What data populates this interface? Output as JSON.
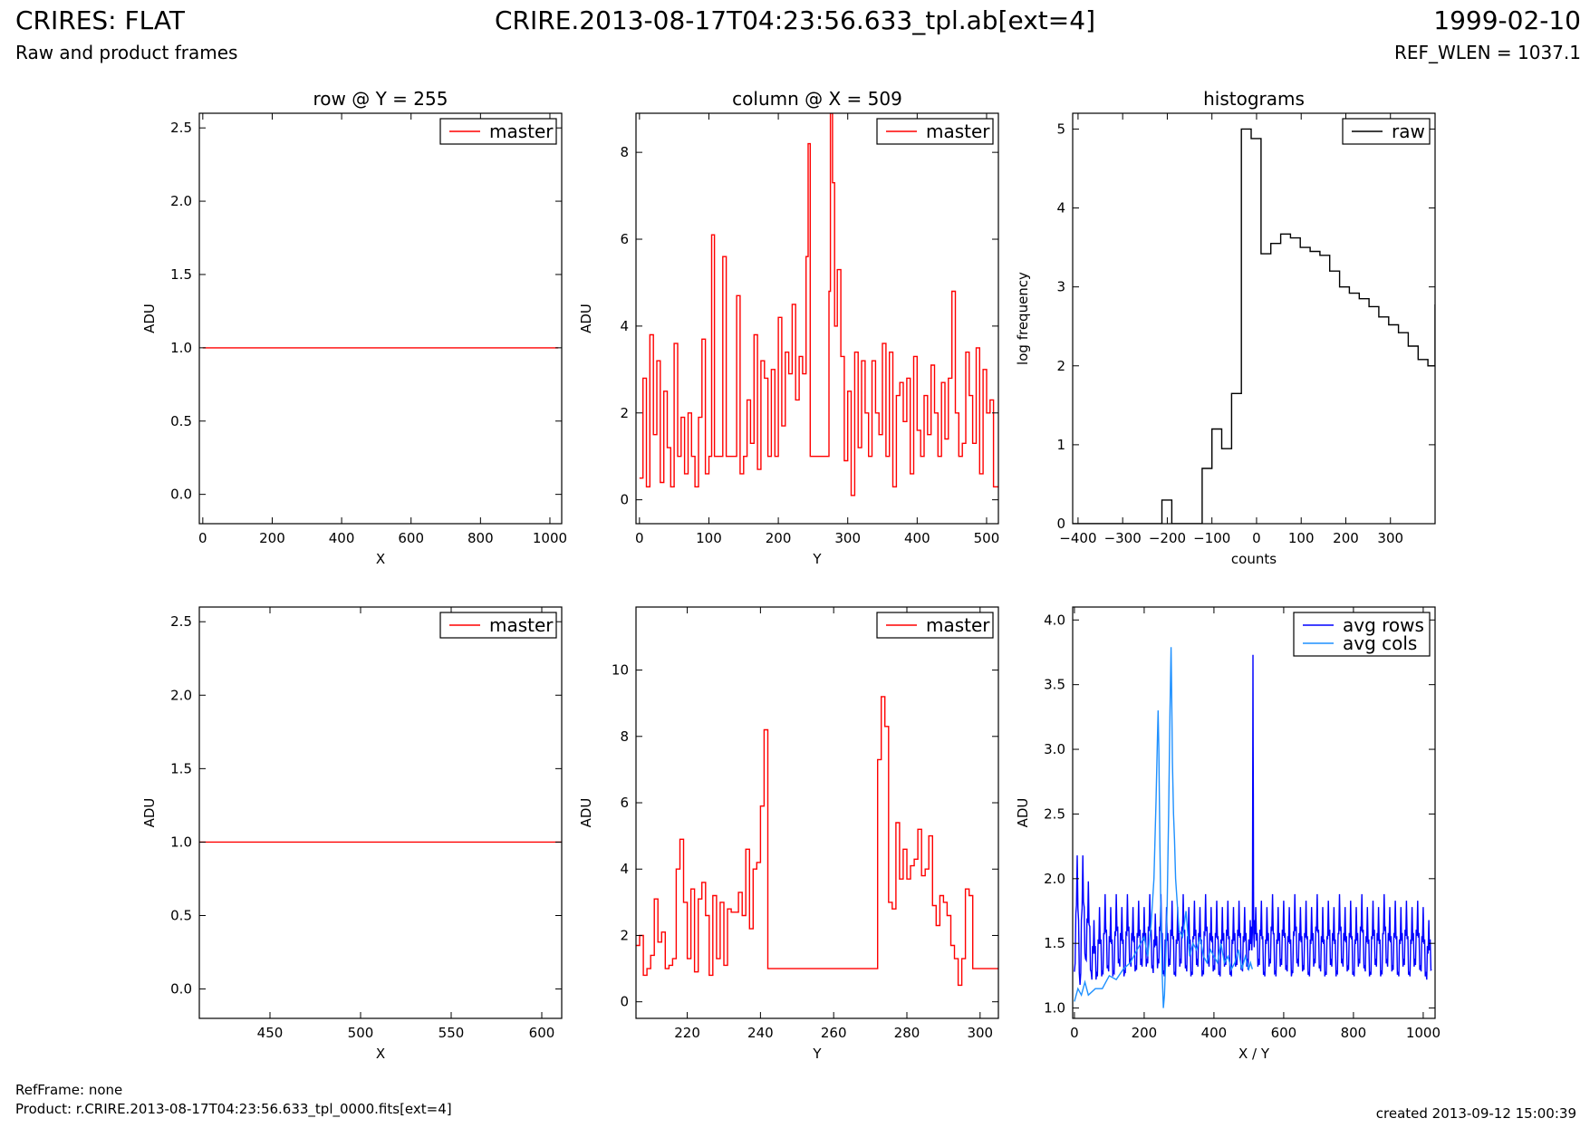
{
  "header": {
    "title": "CRIRES: FLAT",
    "subtitle": "Raw and product frames",
    "file": "CRIRE.2013-08-17T04:23:56.633_tpl.ab[ext=4]",
    "date": "1999-02-10",
    "ref_wlen": "REF_WLEN = 1037.1"
  },
  "footer": {
    "refframe": "RefFrame: none",
    "product": "Product: r.CRIRE.2013-08-17T04:23:56.633_tpl_0000.fits[ext=4]",
    "created": "created 2013-09-12 15:00:39"
  },
  "colors": {
    "master": "#ff0000",
    "raw": "#000000",
    "avg_rows": "#0000ff",
    "avg_cols": "#1e90ff"
  },
  "chart_data": [
    {
      "type": "line",
      "title": "row @ Y = 255",
      "xlabel": "X",
      "ylabel": "ADU",
      "xlim": [
        -10,
        1034
      ],
      "ylim": [
        -0.2,
        2.6
      ],
      "xticks": [
        0,
        200,
        400,
        600,
        800,
        1000
      ],
      "yticks": [
        0.0,
        0.5,
        1.0,
        1.5,
        2.0,
        2.5
      ],
      "ytick_decimals": 1,
      "legend": "top-right",
      "series": [
        {
          "name": "master",
          "color": "#ff0000",
          "step": false,
          "x": [
            0,
            1024
          ],
          "y": [
            1.0,
            1.0
          ]
        }
      ]
    },
    {
      "type": "line",
      "title": "column @ X = 509",
      "xlabel": "Y",
      "ylabel": "ADU",
      "xlim": [
        -5,
        517
      ],
      "ylim": [
        -0.55,
        8.9
      ],
      "xticks": [
        0,
        100,
        200,
        300,
        400,
        500
      ],
      "yticks": [
        0,
        2,
        4,
        6,
        8
      ],
      "ytick_decimals": 0,
      "legend": "top-right",
      "series": [
        {
          "name": "master",
          "color": "#ff0000",
          "step": true,
          "x": [
            0,
            5,
            10,
            15,
            20,
            25,
            30,
            35,
            40,
            45,
            50,
            55,
            60,
            65,
            70,
            75,
            80,
            85,
            90,
            95,
            100,
            104,
            108,
            112,
            116,
            120,
            125,
            130,
            135,
            140,
            145,
            150,
            155,
            160,
            165,
            170,
            175,
            180,
            185,
            190,
            195,
            200,
            205,
            210,
            215,
            220,
            225,
            230,
            235,
            240,
            243,
            246,
            250,
            255,
            260,
            265,
            270,
            273,
            275,
            278,
            281,
            285,
            290,
            295,
            300,
            305,
            310,
            315,
            320,
            325,
            330,
            335,
            340,
            345,
            350,
            355,
            360,
            365,
            370,
            375,
            380,
            385,
            390,
            395,
            400,
            405,
            410,
            415,
            420,
            425,
            430,
            435,
            440,
            445,
            450,
            455,
            460,
            465,
            470,
            475,
            480,
            485,
            490,
            495,
            500,
            505,
            510
          ],
          "y": [
            0.5,
            2.8,
            0.3,
            3.8,
            1.5,
            3.2,
            0.4,
            2.5,
            1.2,
            0.3,
            3.6,
            1.0,
            1.9,
            0.6,
            2.0,
            1.0,
            0.3,
            1.9,
            3.7,
            0.6,
            1.0,
            6.1,
            1.0,
            1.0,
            1.0,
            5.6,
            1.0,
            1.0,
            1.0,
            4.7,
            0.6,
            1.0,
            2.3,
            1.3,
            3.8,
            0.7,
            3.2,
            2.8,
            1.0,
            3.0,
            1.0,
            4.2,
            1.7,
            3.4,
            2.9,
            4.5,
            2.3,
            3.3,
            2.9,
            5.6,
            8.2,
            1.0,
            1.0,
            1.0,
            1.0,
            1.0,
            1.0,
            4.8,
            8.9,
            7.3,
            4.0,
            5.3,
            3.3,
            0.9,
            2.5,
            0.1,
            3.4,
            1.2,
            3.2,
            2.0,
            1.0,
            3.2,
            2.0,
            1.5,
            3.6,
            1.0,
            3.4,
            0.3,
            2.4,
            2.7,
            1.8,
            2.8,
            0.6,
            3.3,
            1.6,
            1.0,
            2.4,
            1.5,
            3.1,
            2.0,
            1.0,
            2.7,
            1.4,
            2.8,
            4.8,
            2.0,
            1.0,
            1.3,
            3.4,
            2.4,
            1.3,
            3.5,
            0.6,
            3.0,
            2.0,
            2.3,
            0.3
          ]
        }
      ]
    },
    {
      "type": "line",
      "title": "histograms",
      "xlabel": "counts",
      "ylabel": "log frequency",
      "xlim": [
        -412,
        400
      ],
      "ylim": [
        0,
        5.2
      ],
      "xticks": [
        -400,
        -300,
        -200,
        -100,
        0,
        100,
        200,
        300
      ],
      "yticks": [
        0,
        1,
        2,
        3,
        4,
        5
      ],
      "ytick_decimals": 0,
      "legend": "top-right",
      "series": [
        {
          "name": "raw",
          "color": "#000000",
          "step": true,
          "x": [
            -412,
            -212,
            -190,
            -168,
            -122,
            -100,
            -78,
            -56,
            -34,
            -12,
            10,
            32,
            54,
            76,
            98,
            120,
            142,
            164,
            186,
            208,
            230,
            252,
            274,
            296,
            318,
            340,
            362,
            384,
            400
          ],
          "y": [
            0,
            0.3,
            0,
            0,
            0.7,
            1.2,
            0.95,
            1.65,
            5.0,
            4.88,
            3.42,
            3.55,
            3.67,
            3.62,
            3.5,
            3.45,
            3.4,
            3.2,
            3.0,
            2.92,
            2.85,
            2.75,
            2.62,
            2.52,
            2.42,
            2.25,
            2.08,
            2.0,
            2.77
          ]
        }
      ]
    },
    {
      "type": "line",
      "title": "",
      "xlabel": "X",
      "ylabel": "ADU",
      "xlim": [
        411,
        611
      ],
      "ylim": [
        -0.2,
        2.6
      ],
      "xticks": [
        450,
        500,
        550,
        600
      ],
      "yticks": [
        0.0,
        0.5,
        1.0,
        1.5,
        2.0,
        2.5
      ],
      "ytick_decimals": 1,
      "legend": "top-right",
      "series": [
        {
          "name": "master",
          "color": "#ff0000",
          "step": false,
          "x": [
            411,
            611
          ],
          "y": [
            1.0,
            1.0
          ]
        }
      ]
    },
    {
      "type": "line",
      "title": "",
      "xlabel": "Y",
      "ylabel": "ADU",
      "xlim": [
        206,
        305
      ],
      "ylim": [
        -0.5,
        11.9
      ],
      "xticks": [
        220,
        240,
        260,
        280,
        300
      ],
      "yticks": [
        0,
        2,
        4,
        6,
        8,
        10
      ],
      "ytick_decimals": 0,
      "legend": "top-right",
      "series": [
        {
          "name": "master",
          "color": "#ff0000",
          "step": true,
          "x": [
            206,
            207,
            208,
            209,
            210,
            211,
            212,
            213,
            214,
            215,
            216,
            217,
            218,
            219,
            220,
            221,
            222,
            223,
            224,
            225,
            226,
            227,
            228,
            229,
            230,
            231,
            232,
            233,
            234,
            235,
            236,
            237,
            238,
            239,
            240,
            241,
            242,
            243,
            244,
            272,
            273,
            274,
            275,
            276,
            277,
            278,
            279,
            280,
            281,
            282,
            283,
            284,
            285,
            286,
            287,
            288,
            289,
            290,
            291,
            292,
            293,
            294,
            295,
            296,
            297,
            298,
            299,
            305
          ],
          "y": [
            1.7,
            2.0,
            0.8,
            1.0,
            1.4,
            3.1,
            1.8,
            2.1,
            1.0,
            1.1,
            1.3,
            4.0,
            4.9,
            3.0,
            1.3,
            3.4,
            0.9,
            3.1,
            3.6,
            2.6,
            0.8,
            3.2,
            1.3,
            3.0,
            1.1,
            2.8,
            2.7,
            2.7,
            3.3,
            2.6,
            4.6,
            2.2,
            4.0,
            4.2,
            5.9,
            8.2,
            1.0,
            1.0,
            1.0,
            7.3,
            9.2,
            8.3,
            3.0,
            2.8,
            5.4,
            3.7,
            4.6,
            3.7,
            4.1,
            4.3,
            5.2,
            3.8,
            4.0,
            5.0,
            2.9,
            2.3,
            3.2,
            3.0,
            2.6,
            1.7,
            1.3,
            0.5,
            1.3,
            3.4,
            3.2,
            1.0,
            1.0,
            1.0
          ]
        }
      ]
    },
    {
      "type": "line",
      "title": "",
      "xlabel": "X / Y",
      "ylabel": "ADU",
      "xlim": [
        -5,
        1034
      ],
      "ylim": [
        0.92,
        4.1
      ],
      "xticks": [
        0,
        200,
        400,
        600,
        800,
        1000
      ],
      "yticks": [
        1.0,
        1.5,
        2.0,
        2.5,
        3.0,
        3.5,
        4.0
      ],
      "ytick_decimals": 1,
      "legend": "top-right",
      "series": [
        {
          "name": "avg rows",
          "color": "#0000ff",
          "step": false,
          "noisy": true,
          "x": [
            0,
            8,
            16,
            24,
            32,
            40,
            48,
            56,
            64,
            72,
            80,
            88,
            96,
            104,
            112,
            120,
            128,
            136,
            144,
            152,
            160,
            168,
            176,
            184,
            192,
            200,
            208,
            216,
            224,
            232,
            240,
            248,
            256,
            264,
            272,
            280,
            288,
            296,
            304,
            312,
            320,
            328,
            336,
            344,
            352,
            360,
            368,
            376,
            384,
            392,
            400,
            408,
            416,
            424,
            432,
            440,
            448,
            456,
            464,
            472,
            480,
            488,
            496,
            504,
            510,
            512,
            514,
            520,
            528,
            536,
            544,
            552,
            560,
            568,
            576,
            584,
            592,
            600,
            608,
            616,
            624,
            632,
            640,
            648,
            656,
            664,
            672,
            680,
            688,
            696,
            704,
            712,
            720,
            728,
            736,
            744,
            752,
            760,
            768,
            776,
            784,
            792,
            800,
            808,
            816,
            824,
            832,
            840,
            848,
            856,
            864,
            872,
            880,
            888,
            896,
            904,
            912,
            920,
            928,
            936,
            944,
            952,
            960,
            968,
            976,
            984,
            992,
            1000,
            1008,
            1016,
            1024
          ],
          "y": [
            1.2,
            2.1,
            1.1,
            2.1,
            1.3,
            1.9,
            1.2,
            1.6,
            1.2,
            1.7,
            1.2,
            1.8,
            1.25,
            1.7,
            1.2,
            1.8,
            1.3,
            1.7,
            1.2,
            1.8,
            1.3,
            1.7,
            1.25,
            1.75,
            1.3,
            1.7,
            1.3,
            1.8,
            1.25,
            1.65,
            1.3,
            1.8,
            1.2,
            1.7,
            1.3,
            1.75,
            1.2,
            1.7,
            1.3,
            1.8,
            1.25,
            1.7,
            1.2,
            1.75,
            1.3,
            1.7,
            1.2,
            1.8,
            1.3,
            1.7,
            1.25,
            1.75,
            1.2,
            1.7,
            1.3,
            1.75,
            1.2,
            1.7,
            1.3,
            1.75,
            1.25,
            1.7,
            1.3,
            1.6,
            1.5,
            3.65,
            1.5,
            1.7,
            1.3,
            1.75,
            1.2,
            1.7,
            1.3,
            1.8,
            1.2,
            1.7,
            1.3,
            1.75,
            1.25,
            1.7,
            1.2,
            1.8,
            1.3,
            1.7,
            1.25,
            1.75,
            1.2,
            1.7,
            1.3,
            1.8,
            1.25,
            1.7,
            1.2,
            1.75,
            1.3,
            1.7,
            1.2,
            1.8,
            1.3,
            1.7,
            1.25,
            1.75,
            1.2,
            1.7,
            1.3,
            1.8,
            1.25,
            1.7,
            1.2,
            1.75,
            1.3,
            1.7,
            1.2,
            1.8,
            1.3,
            1.7,
            1.25,
            1.75,
            1.2,
            1.7,
            1.3,
            1.75,
            1.2,
            1.7,
            1.3,
            1.75,
            1.25,
            1.7,
            1.2,
            1.6,
            1.3
          ]
        },
        {
          "name": "avg cols",
          "color": "#1e90ff",
          "step": false,
          "x": [
            0,
            10,
            20,
            30,
            40,
            60,
            80,
            100,
            120,
            140,
            160,
            180,
            200,
            210,
            220,
            228,
            234,
            238,
            240,
            242,
            245,
            248,
            251,
            255,
            258,
            262,
            266,
            270,
            274,
            277,
            279,
            281,
            284,
            287,
            290,
            295,
            300,
            310,
            320,
            330,
            340,
            350,
            360,
            370,
            380,
            390,
            400,
            410,
            420,
            430,
            440,
            450,
            460,
            470,
            480,
            490,
            500,
            505,
            510
          ],
          "y": [
            1.05,
            1.15,
            1.1,
            1.2,
            1.1,
            1.15,
            1.15,
            1.25,
            1.22,
            1.3,
            1.35,
            1.45,
            1.55,
            1.4,
            1.65,
            2.0,
            2.6,
            3.1,
            3.3,
            3.0,
            2.3,
            1.7,
            1.3,
            1.0,
            1.1,
            1.4,
            1.8,
            2.5,
            3.3,
            3.79,
            3.4,
            2.9,
            2.5,
            2.3,
            2.0,
            1.8,
            1.6,
            1.55,
            1.75,
            1.4,
            1.5,
            1.45,
            1.55,
            1.4,
            1.35,
            1.45,
            1.4,
            1.35,
            1.5,
            1.35,
            1.4,
            1.3,
            1.35,
            1.45,
            1.3,
            1.4,
            1.3,
            1.35,
            1.3
          ]
        }
      ]
    }
  ]
}
